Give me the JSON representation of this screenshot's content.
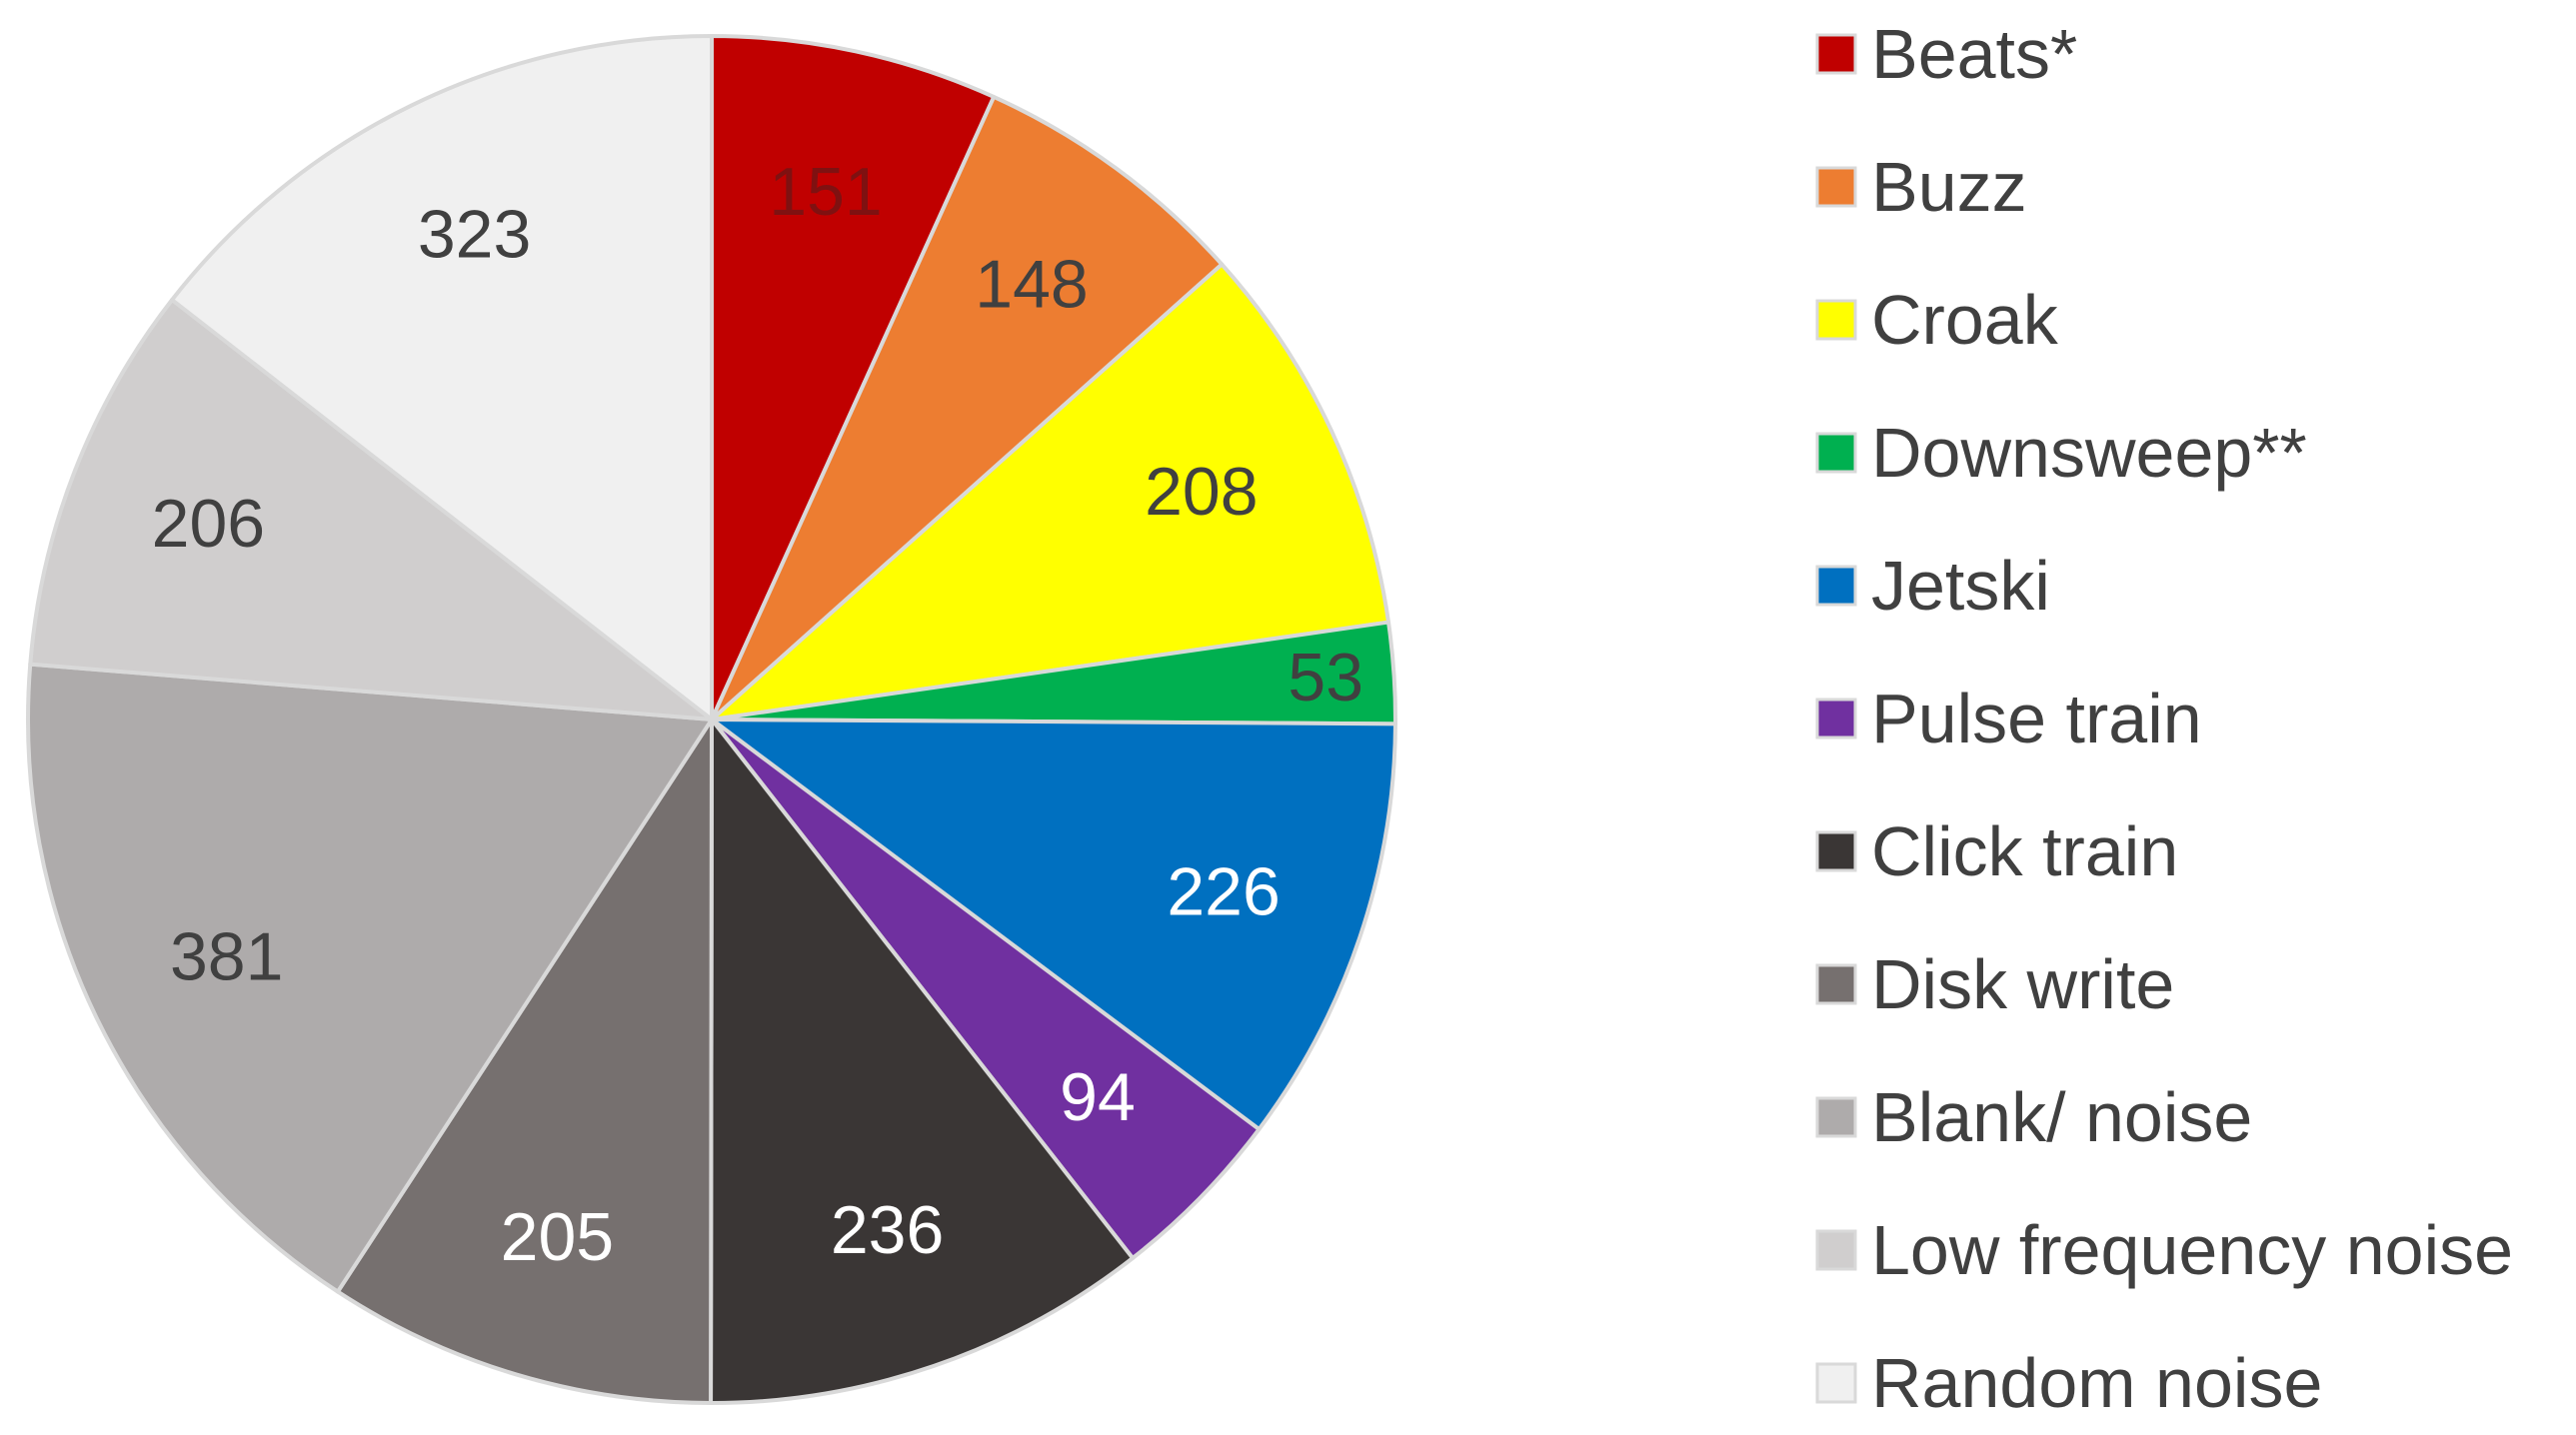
{
  "chart_data": {
    "type": "pie",
    "title": "",
    "start_angle_deg": 0,
    "direction": "clockwise",
    "legend_position": "right",
    "slices": [
      {
        "label": "Beats*",
        "value": 151,
        "color": "#C00000",
        "label_color": "#7f1111"
      },
      {
        "label": "Buzz",
        "value": 148,
        "color": "#ED7D31",
        "label_color": "#404040"
      },
      {
        "label": "Croak",
        "value": 208,
        "color": "#FFFF00",
        "label_color": "#404040"
      },
      {
        "label": "Downsweep**",
        "value": 53,
        "color": "#00B050",
        "label_color": "#404040"
      },
      {
        "label": "Jetski",
        "value": 226,
        "color": "#0070C0",
        "label_color": "#ffffff"
      },
      {
        "label": "Pulse train",
        "value": 94,
        "color": "#7030A0",
        "label_color": "#ffffff"
      },
      {
        "label": "Click train",
        "value": 236,
        "color": "#3A3635",
        "label_color": "#ffffff"
      },
      {
        "label": "Disk write",
        "value": 205,
        "color": "#76706F",
        "label_color": "#ffffff"
      },
      {
        "label": "Blank/ noise",
        "value": 381,
        "color": "#AEABAB",
        "label_color": "#404040"
      },
      {
        "label": "Low frequency noise",
        "value": 206,
        "color": "#D0CECE",
        "label_color": "#404040"
      },
      {
        "label": "Random noise",
        "value": 323,
        "color": "#F0F0F0",
        "label_color": "#404040"
      }
    ]
  }
}
